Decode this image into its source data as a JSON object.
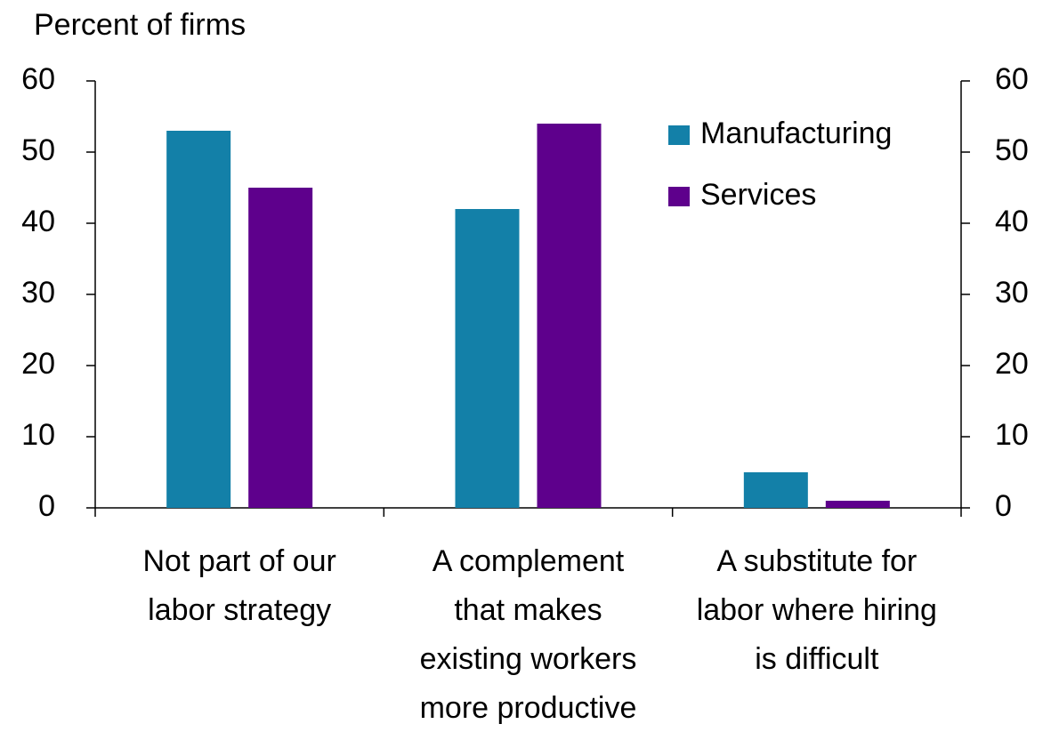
{
  "chart_data": {
    "type": "bar",
    "y_label": "Percent of firms",
    "categories": [
      [
        "Not part of our",
        "labor strategy"
      ],
      [
        "A complement",
        "that makes",
        "existing workers",
        "more productive"
      ],
      [
        "A substitute for",
        "labor where hiring",
        "is difficult"
      ]
    ],
    "series": [
      {
        "name": "Manufacturing",
        "color": "#1380a8",
        "values": [
          53,
          42,
          5
        ]
      },
      {
        "name": "Services",
        "color": "#5e008c",
        "values": [
          45,
          54,
          1
        ]
      }
    ],
    "ylim": [
      0,
      60
    ],
    "yticks": [
      0,
      10,
      20,
      30,
      40,
      50,
      60
    ],
    "y2lim": [
      0,
      60
    ],
    "y2ticks": [
      0,
      10,
      20,
      30,
      40,
      50,
      60
    ],
    "grid": false,
    "legend": "upper right"
  }
}
